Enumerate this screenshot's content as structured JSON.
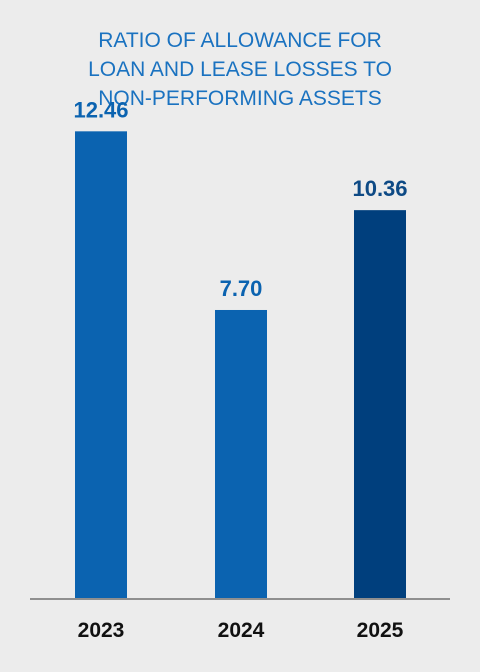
{
  "chart_data": {
    "type": "bar",
    "title_lines": [
      "RATIO OF ALLOWANCE FOR",
      "LOAN AND LEASE LOSSES TO",
      "NON-PERFORMING ASSETS"
    ],
    "categories": [
      "2023",
      "2024",
      "2025"
    ],
    "values": [
      12.46,
      7.7,
      10.36
    ],
    "value_labels": [
      "12.46",
      "7.70",
      "10.36"
    ],
    "ylim": [
      0,
      14.6
    ],
    "grid": false,
    "legend": "none",
    "colors": {
      "title": "#1a72c0",
      "bar": "#0b63b0",
      "bar_highlight": "#003f7d",
      "label": "#0b63b0",
      "label_highlight": "#0e4a85",
      "axis": "#8f8f8f",
      "background": "#ececec"
    },
    "highlight_index": 2
  }
}
